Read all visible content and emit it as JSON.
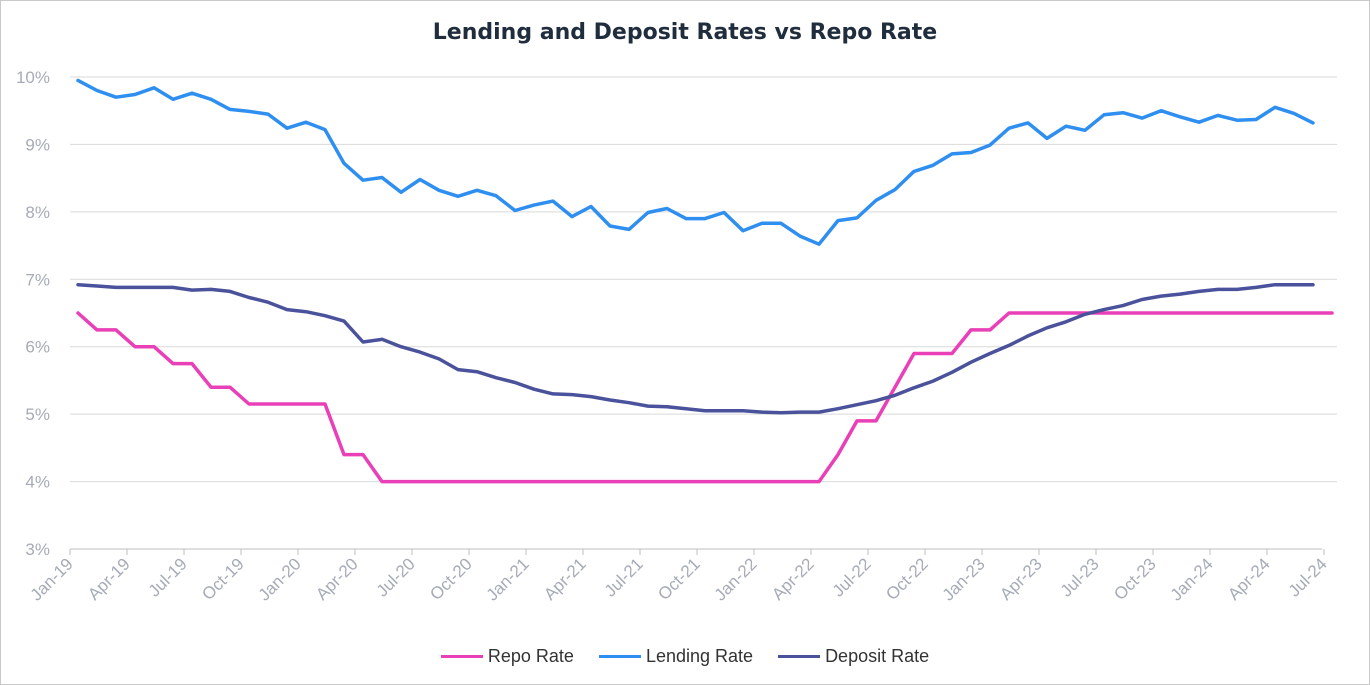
{
  "chart_data": {
    "type": "line",
    "title": "Lending and Deposit Rates vs Repo Rate",
    "xlabel": "",
    "ylabel": "",
    "ylim": [
      3,
      10
    ],
    "yticks": [
      "3%",
      "4%",
      "5%",
      "6%",
      "7%",
      "8%",
      "9%",
      "10%"
    ],
    "xticks": [
      "Jan-19",
      "Apr-19",
      "Jul-19",
      "Oct-19",
      "Jan-20",
      "Apr-20",
      "Jul-20",
      "Oct-20",
      "Jan-21",
      "Apr-21",
      "Jul-21",
      "Oct-21",
      "Jan-22",
      "Apr-22",
      "Jul-22",
      "Oct-22",
      "Jan-23",
      "Apr-23",
      "Jul-23",
      "Oct-23",
      "Jan-24",
      "Apr-24",
      "Jul-24"
    ],
    "grid": true,
    "legend": "bottom-center",
    "series": [
      {
        "name": "Repo Rate",
        "color": "#e940b8",
        "values": [
          6.5,
          6.25,
          6.25,
          6.0,
          6.0,
          5.75,
          5.75,
          5.4,
          5.4,
          5.15,
          5.15,
          5.15,
          5.15,
          5.15,
          4.4,
          4.4,
          4.0,
          4.0,
          4.0,
          4.0,
          4.0,
          4.0,
          4.0,
          4.0,
          4.0,
          4.0,
          4.0,
          4.0,
          4.0,
          4.0,
          4.0,
          4.0,
          4.0,
          4.0,
          4.0,
          4.0,
          4.0,
          4.0,
          4.0,
          4.0,
          4.4,
          4.9,
          4.9,
          5.4,
          5.9,
          5.9,
          5.9,
          6.25,
          6.25,
          6.5,
          6.5,
          6.5,
          6.5,
          6.5,
          6.5,
          6.5,
          6.5,
          6.5,
          6.5,
          6.5,
          6.5,
          6.5,
          6.5,
          6.5,
          6.5,
          6.5,
          6.5
        ]
      },
      {
        "name": "Lending Rate",
        "color": "#2f8ff0",
        "values": [
          9.95,
          9.8,
          9.7,
          9.74,
          9.84,
          9.67,
          9.76,
          9.67,
          9.52,
          9.49,
          9.45,
          9.24,
          9.33,
          9.22,
          8.72,
          8.47,
          8.51,
          8.29,
          8.48,
          8.32,
          8.23,
          8.32,
          8.24,
          8.02,
          8.1,
          8.16,
          7.93,
          8.08,
          7.79,
          7.74,
          7.99,
          8.05,
          7.9,
          7.9,
          7.99,
          7.72,
          7.83,
          7.83,
          7.64,
          7.52,
          7.87,
          7.91,
          8.17,
          8.33,
          8.6,
          8.69,
          8.86,
          8.88,
          8.99,
          9.24,
          9.32,
          9.09,
          9.27,
          9.21,
          9.44,
          9.47,
          9.39,
          9.5,
          9.41,
          9.33,
          9.43,
          9.36,
          9.37,
          9.55,
          9.46,
          9.32
        ]
      },
      {
        "name": "Deposit Rate",
        "color": "#4b529c",
        "values": [
          6.92,
          6.9,
          6.88,
          6.88,
          6.88,
          6.88,
          6.84,
          6.85,
          6.82,
          6.73,
          6.66,
          6.55,
          6.52,
          6.46,
          6.38,
          6.07,
          6.11,
          6.0,
          5.92,
          5.82,
          5.66,
          5.63,
          5.54,
          5.47,
          5.37,
          5.3,
          5.29,
          5.26,
          5.21,
          5.17,
          5.12,
          5.11,
          5.08,
          5.05,
          5.05,
          5.05,
          5.03,
          5.02,
          5.03,
          5.03,
          5.08,
          5.14,
          5.2,
          5.28,
          5.39,
          5.49,
          5.62,
          5.77,
          5.9,
          6.02,
          6.16,
          6.28,
          6.37,
          6.48,
          6.55,
          6.61,
          6.7,
          6.75,
          6.78,
          6.82,
          6.85,
          6.85,
          6.88,
          6.92,
          6.92,
          6.92
        ]
      }
    ]
  }
}
